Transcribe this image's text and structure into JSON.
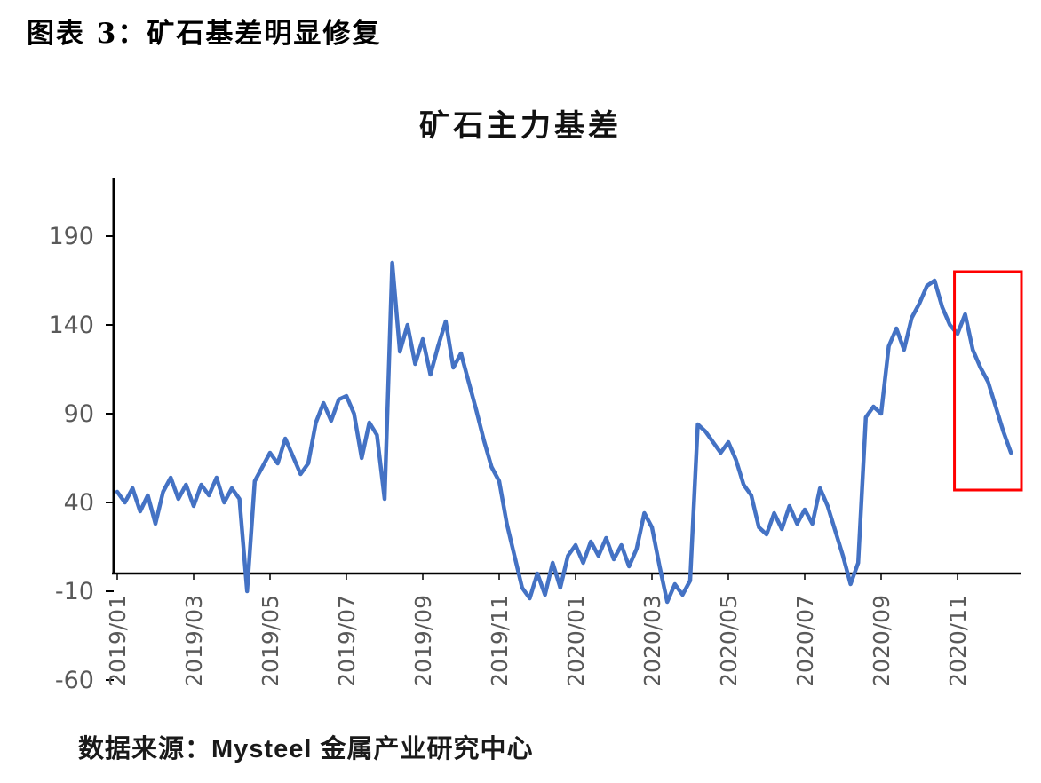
{
  "figure": {
    "caption": "图表 3：矿石基差明显修复"
  },
  "source": {
    "text": "数据来源：Mysteel 金属产业研究中心"
  },
  "chart_data": {
    "type": "line",
    "title": "矿石主力基差",
    "legend": "none",
    "grid": false,
    "axis_color": "#000000",
    "tick_label_color": "#595959",
    "ylim": [
      -60,
      220
    ],
    "y_ticks": [
      190,
      140,
      90,
      40,
      -10,
      -60
    ],
    "x_tick_labels": [
      "2019/01",
      "2019/03",
      "2019/05",
      "2019/07",
      "2019/09",
      "2019/11",
      "2020/01",
      "2020/03",
      "2020/05",
      "2020/07",
      "2020/09",
      "2020/11"
    ],
    "x_tick_indices": [
      0,
      10,
      20,
      30,
      40,
      50,
      60,
      70,
      80,
      90,
      100,
      110
    ],
    "series": [
      {
        "name": "矿石主力基差",
        "color": "#4472C4",
        "values": [
          46,
          40,
          48,
          35,
          44,
          28,
          46,
          54,
          42,
          50,
          38,
          50,
          44,
          54,
          40,
          48,
          42,
          -10,
          52,
          60,
          68,
          62,
          76,
          66,
          56,
          62,
          85,
          96,
          86,
          98,
          100,
          90,
          65,
          85,
          78,
          42,
          175,
          125,
          140,
          118,
          132,
          112,
          128,
          142,
          116,
          124,
          108,
          92,
          75,
          60,
          52,
          28,
          10,
          -8,
          -14,
          0,
          -12,
          6,
          -8,
          10,
          16,
          6,
          18,
          10,
          20,
          8,
          16,
          4,
          14,
          34,
          26,
          4,
          -16,
          -6,
          -12,
          -4,
          84,
          80,
          74,
          68,
          74,
          64,
          50,
          44,
          26,
          22,
          34,
          25,
          38,
          28,
          36,
          28,
          48,
          38,
          24,
          10,
          -6,
          6,
          88,
          94,
          90,
          128,
          138,
          126,
          144,
          152,
          162,
          165,
          150,
          140,
          135,
          146,
          126,
          116,
          108,
          94,
          80,
          68
        ]
      }
    ],
    "annotations": [
      {
        "type": "rect",
        "label": "basis-repair-highlight",
        "x_from_index": 109.6,
        "x_to_index": 121,
        "y_from": 47,
        "y_to": 170,
        "color": "#FF0000"
      }
    ]
  }
}
